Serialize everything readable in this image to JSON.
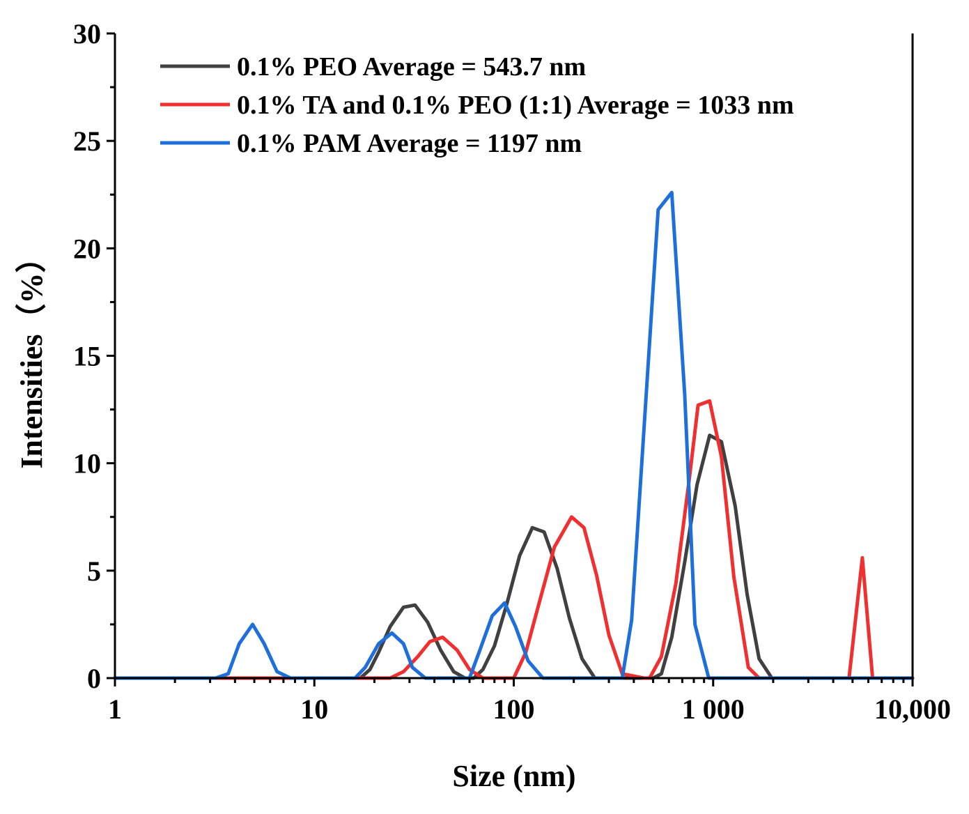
{
  "chart_data": {
    "type": "line",
    "title": "",
    "xlabel": "Size (nm)",
    "ylabel": "Intensities（%）",
    "xscale": "log",
    "xlim": [
      1,
      10000
    ],
    "ylim": [
      0,
      30
    ],
    "xticks": [
      {
        "value": 1,
        "label": "1"
      },
      {
        "value": 10,
        "label": "10"
      },
      {
        "value": 100,
        "label": "100"
      },
      {
        "value": 1000,
        "label": "1 000"
      },
      {
        "value": 10000,
        "label": "10,000"
      }
    ],
    "yticks": [
      {
        "value": 0,
        "label": "0"
      },
      {
        "value": 5,
        "label": "5"
      },
      {
        "value": 10,
        "label": "10"
      },
      {
        "value": 15,
        "label": "15"
      },
      {
        "value": 20,
        "label": "20"
      },
      {
        "value": 25,
        "label": "25"
      },
      {
        "value": 30,
        "label": "30"
      }
    ],
    "legend_position": "top-left",
    "series": [
      {
        "name": "0.1% PEO Average = 543.7 nm",
        "color": "#404040",
        "x": [
          1,
          17,
          19,
          21,
          24,
          28,
          32,
          37,
          43,
          50,
          57,
          63,
          70,
          80,
          92,
          107,
          124,
          142,
          165,
          190,
          220,
          255,
          290,
          500,
          550,
          620,
          720,
          830,
          960,
          1100,
          1290,
          1480,
          1700,
          1970,
          10000
        ],
        "values": [
          0,
          0,
          0.4,
          1.2,
          2.4,
          3.3,
          3.4,
          2.6,
          1.3,
          0.3,
          0,
          0,
          0.4,
          1.5,
          3.4,
          5.7,
          7.0,
          6.8,
          5.1,
          2.8,
          0.9,
          0,
          0,
          0,
          0.2,
          1.9,
          5.4,
          9.0,
          11.3,
          11.0,
          8.0,
          3.9,
          0.9,
          0,
          0
        ]
      },
      {
        "name": "0.1% TA and 0.1% PEO (1:1) Average = 1033 nm",
        "color": "#f03030",
        "x": [
          1,
          24,
          28,
          33,
          38,
          44,
          52,
          60,
          70,
          100,
          115,
          135,
          160,
          195,
          225,
          260,
          300,
          350,
          450,
          480,
          550,
          650,
          760,
          840,
          960,
          1100,
          1270,
          1500,
          1700,
          4800,
          5600,
          6300,
          10000
        ],
        "values": [
          0,
          0,
          0.3,
          1.0,
          1.7,
          1.9,
          1.3,
          0.4,
          0,
          0,
          1.2,
          3.6,
          6.1,
          7.5,
          7.0,
          4.8,
          2.0,
          0.2,
          0,
          0,
          1.0,
          4.4,
          9.3,
          12.7,
          12.9,
          10.3,
          4.7,
          0.5,
          0,
          0,
          5.6,
          0,
          0
        ]
      },
      {
        "name": "0.1% PAM Average = 1197 nm",
        "color": "#1e6fd9",
        "x": [
          1,
          3.2,
          3.7,
          4.2,
          4.9,
          5.6,
          6.5,
          7.6,
          16,
          18,
          21,
          24.5,
          28,
          31,
          36,
          60,
          67,
          78,
          90,
          102,
          118,
          140,
          350,
          390,
          530,
          620,
          720,
          810,
          950,
          10000
        ],
        "values": [
          0,
          0,
          0.2,
          1.6,
          2.5,
          1.6,
          0.3,
          0,
          0,
          0.5,
          1.6,
          2.1,
          1.6,
          0.5,
          0,
          0,
          1.2,
          2.9,
          3.5,
          2.4,
          0.8,
          0,
          0,
          2.7,
          21.8,
          22.6,
          13.2,
          2.5,
          0,
          0
        ]
      }
    ]
  }
}
